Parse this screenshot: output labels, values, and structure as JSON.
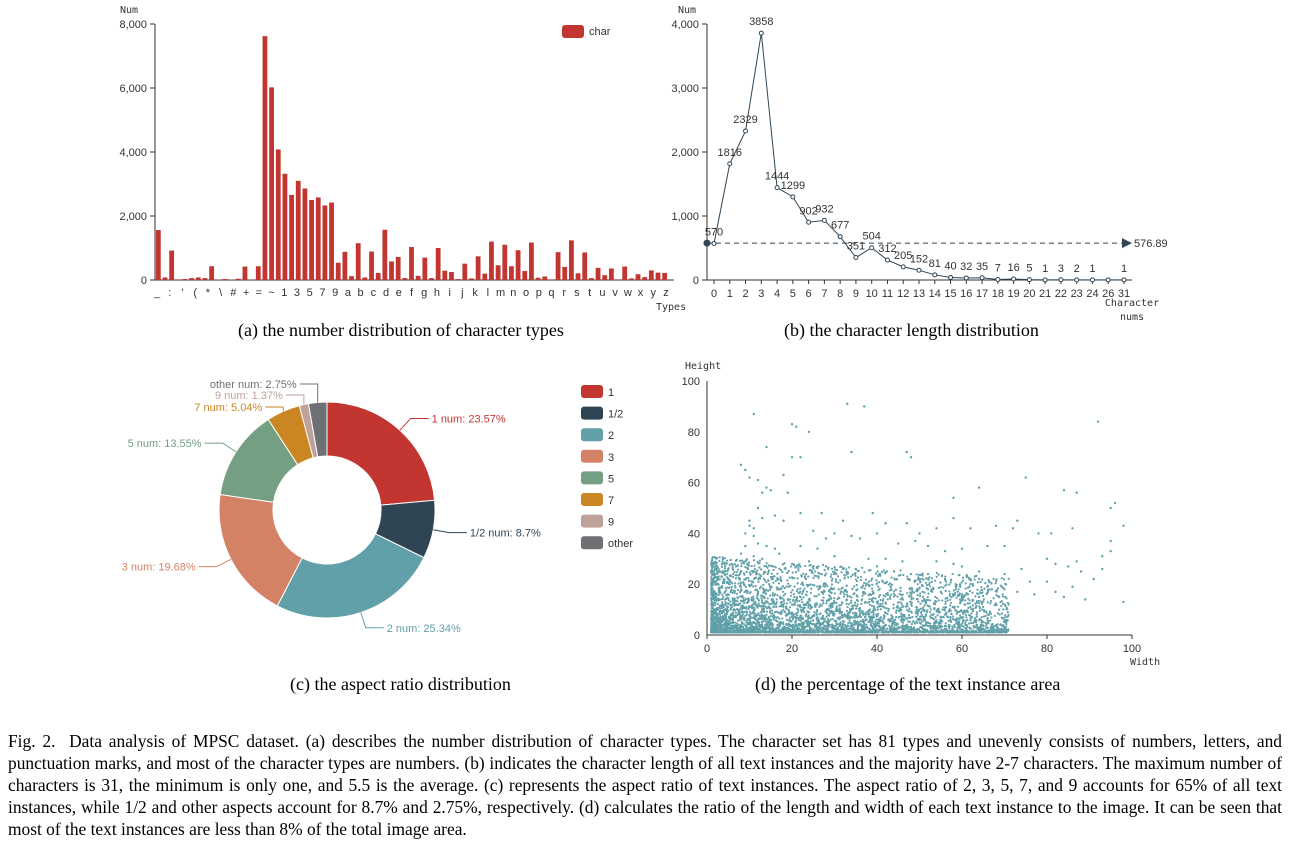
{
  "subcaptions": {
    "a": "(a) the number distribution of character types",
    "b": "(b) the character length distribution",
    "c": "(c)  the aspect ratio distribution",
    "d": "(d)  the percentage of the text instance area"
  },
  "figure_caption": {
    "label": "Fig. 2.",
    "text": "Data analysis of MPSC dataset. (a) describes the number distribution of character types. The character set has 81 types and unevenly consists of numbers, letters, and punctuation marks, and most of the character types are numbers. (b) indicates the character length of all text instances and the majority have 2-7 characters. The maximum number of characters is 31, the minimum is only one, and 5.5 is the average. (c) represents the aspect ratio of text instances. The aspect ratio of 2, 3, 5, 7, and 9 accounts for 65% of all text instances, while 1/2 and other aspects account for 8.7% and 2.75%, respectively. (d) calculates the ratio of the length and width of each text instance to the image. It can be seen that most of the text instances are less than 8% of the total image area."
  },
  "chart_data": [
    {
      "type": "bar",
      "ylabel": "Num",
      "xlabel": "Types",
      "ylim": [
        0,
        8000
      ],
      "yticks": [
        "0",
        "2,000",
        "4,000",
        "6,000",
        "8,000"
      ],
      "legend": "top-right",
      "series": [
        {
          "name": "char",
          "color": "#c23531"
        }
      ],
      "tick_labels": [
        "_",
        ":",
        "'",
        "(",
        "*",
        "\\",
        "#",
        "+",
        "=",
        "~",
        "1",
        "3",
        "5",
        "7",
        "9",
        "a",
        "b",
        "c",
        "d",
        "e",
        "f",
        "g",
        "h",
        "i",
        "j",
        "k",
        "l",
        "m",
        "n",
        "o",
        "p",
        "q",
        "r",
        "s",
        "t",
        "u",
        "v",
        "w",
        "x",
        "y",
        "z"
      ],
      "values": [
        1560,
        80,
        920,
        20,
        30,
        60,
        80,
        60,
        430,
        10,
        30,
        10,
        40,
        420,
        10,
        430,
        7620,
        6020,
        4080,
        3320,
        2660,
        3100,
        2860,
        2500,
        2580,
        2330,
        2420,
        540,
        880,
        120,
        1150,
        80,
        890,
        220,
        1570,
        580,
        720,
        60,
        1030,
        130,
        700,
        60,
        1000,
        290,
        250,
        30,
        510,
        50,
        740,
        200,
        1200,
        460,
        1100,
        430,
        930,
        280,
        1170,
        70,
        110,
        20,
        870,
        410,
        1240,
        210,
        860,
        60,
        380,
        150,
        360,
        20,
        420,
        50,
        180,
        90,
        300,
        230,
        220
      ]
    },
    {
      "type": "line",
      "ylabel": "Num",
      "xlabel": "Character nums",
      "ylim": [
        0,
        4000
      ],
      "yticks": [
        "0",
        "1,000",
        "2,000",
        "3,000",
        "4,000"
      ],
      "categories": [
        "0",
        "1",
        "2",
        "3",
        "4",
        "5",
        "6",
        "7",
        "8",
        "9",
        "10",
        "11",
        "12",
        "13",
        "14",
        "15",
        "16",
        "17",
        "18",
        "19",
        "20",
        "21",
        "22",
        "23",
        "24",
        "26",
        "31"
      ],
      "values": [
        570,
        1816,
        2329,
        3858,
        1444,
        1299,
        902,
        932,
        677,
        351,
        504,
        312,
        205,
        152,
        81,
        40,
        32,
        35,
        7,
        16,
        5,
        1,
        3,
        2,
        1,
        1,
        1
      ],
      "point_labels": [
        "570",
        "1816",
        "2329",
        "3858",
        "1444",
        "1299",
        "902",
        "932",
        "677",
        "351",
        "504",
        "312",
        "205",
        "152",
        "81",
        "40",
        "32",
        "35",
        "7",
        "16",
        "5",
        "1",
        "3",
        "2",
        "1",
        "",
        "1"
      ],
      "mean_line": {
        "value": 576.89,
        "label": "576.89"
      },
      "color": "#2f4554"
    },
    {
      "type": "pie",
      "legend": "right",
      "slices": [
        {
          "name": "1",
          "label": "1 num: 23.57%",
          "value": 23.57,
          "color": "#c23531"
        },
        {
          "name": "1/2",
          "label": "1/2 num: 8.7%",
          "value": 8.7,
          "color": "#2f4554"
        },
        {
          "name": "2",
          "label": "2 num: 25.34%",
          "value": 25.34,
          "color": "#61a0a8"
        },
        {
          "name": "3",
          "label": "3 num: 19.68%",
          "value": 19.68,
          "color": "#d48265"
        },
        {
          "name": "5",
          "label": "5 num: 13.55%",
          "value": 13.55,
          "color": "#749f83"
        },
        {
          "name": "7",
          "label": "7 num: 5.04%",
          "value": 5.04,
          "color": "#ca8622"
        },
        {
          "name": "9",
          "label": "9 num: 1.37%",
          "value": 1.37,
          "color": "#bda29a"
        },
        {
          "name": "other",
          "label": "other num: 2.75%",
          "value": 2.75,
          "color": "#6e7074"
        }
      ]
    },
    {
      "type": "scatter",
      "ylabel": "Height",
      "xlabel": "Width",
      "xlim": [
        0,
        100
      ],
      "ylim": [
        0,
        100
      ],
      "xticks": [
        "0",
        "20",
        "40",
        "60",
        "80",
        "100"
      ],
      "yticks": [
        "0",
        "20",
        "40",
        "60",
        "80",
        "100"
      ],
      "color": "#61a0a8",
      "points": [
        [
          10,
          43
        ],
        [
          11,
          42
        ],
        [
          11,
          39
        ],
        [
          9,
          40
        ],
        [
          10,
          45
        ],
        [
          13,
          46
        ],
        [
          12,
          50
        ],
        [
          14,
          58
        ],
        [
          13,
          56
        ],
        [
          15,
          57
        ],
        [
          12,
          61
        ],
        [
          19,
          56
        ],
        [
          10,
          62
        ],
        [
          8,
          67
        ],
        [
          9,
          65
        ],
        [
          14,
          74
        ],
        [
          18,
          63
        ],
        [
          20,
          70
        ],
        [
          21,
          82
        ],
        [
          22,
          70
        ],
        [
          24,
          80
        ],
        [
          34,
          72
        ],
        [
          33,
          91
        ],
        [
          37,
          90
        ],
        [
          47,
          72
        ],
        [
          48,
          70
        ],
        [
          11,
          87
        ],
        [
          20,
          83
        ],
        [
          92,
          84
        ],
        [
          75,
          62
        ],
        [
          84,
          57
        ],
        [
          87,
          56
        ],
        [
          64,
          58
        ],
        [
          58,
          54
        ],
        [
          39,
          48
        ],
        [
          40,
          40
        ],
        [
          42,
          44
        ],
        [
          47,
          44
        ],
        [
          50,
          40
        ],
        [
          54,
          42
        ],
        [
          58,
          46
        ],
        [
          62,
          42
        ],
        [
          68,
          43
        ],
        [
          72,
          42
        ],
        [
          73,
          45
        ],
        [
          78,
          40
        ],
        [
          81,
          40
        ],
        [
          86,
          42
        ],
        [
          95,
          50
        ],
        [
          96,
          52
        ],
        [
          98,
          43
        ],
        [
          95,
          37
        ],
        [
          95,
          33
        ],
        [
          93,
          31
        ],
        [
          87,
          29
        ],
        [
          88,
          25
        ],
        [
          85,
          27
        ],
        [
          82,
          28
        ],
        [
          80,
          30
        ],
        [
          66,
          35
        ],
        [
          70,
          35
        ],
        [
          60,
          34
        ],
        [
          56,
          33
        ],
        [
          28,
          38
        ],
        [
          25,
          41
        ],
        [
          30,
          40
        ],
        [
          34,
          39
        ],
        [
          36,
          38
        ],
        [
          45,
          36
        ],
        [
          49,
          37
        ],
        [
          52,
          35
        ],
        [
          18,
          45
        ],
        [
          22,
          48
        ],
        [
          27,
          48
        ],
        [
          32,
          45
        ],
        [
          16,
          47
        ],
        [
          91,
          22
        ],
        [
          93,
          26
        ],
        [
          98,
          13
        ],
        [
          84,
          15
        ],
        [
          76,
          21
        ],
        [
          70,
          24
        ],
        [
          64,
          25
        ],
        [
          62,
          22
        ],
        [
          74,
          26
        ],
        [
          80,
          21
        ],
        [
          22,
          35
        ],
        [
          26,
          34
        ],
        [
          30,
          31
        ],
        [
          38,
          30
        ],
        [
          42,
          30
        ],
        [
          46,
          29
        ],
        [
          54,
          29
        ],
        [
          58,
          28
        ],
        [
          60,
          27
        ],
        [
          12,
          36
        ],
        [
          14,
          35
        ],
        [
          16,
          34
        ],
        [
          17,
          32
        ],
        [
          9,
          35
        ],
        [
          8,
          32
        ],
        [
          11,
          31
        ],
        [
          13,
          30
        ],
        [
          24,
          29
        ],
        [
          28,
          27
        ],
        [
          32,
          26
        ],
        [
          35,
          26
        ],
        [
          40,
          27
        ],
        [
          44,
          25
        ],
        [
          48,
          24
        ],
        [
          52,
          24
        ],
        [
          56,
          22
        ],
        [
          62,
          20
        ],
        [
          66,
          19
        ],
        [
          70,
          18
        ],
        [
          73,
          17
        ],
        [
          77,
          16
        ],
        [
          82,
          17
        ],
        [
          86,
          19
        ],
        [
          89,
          14
        ],
        [
          52,
          18
        ],
        [
          55,
          17
        ],
        [
          60,
          16
        ],
        [
          64,
          15
        ]
      ]
    }
  ]
}
